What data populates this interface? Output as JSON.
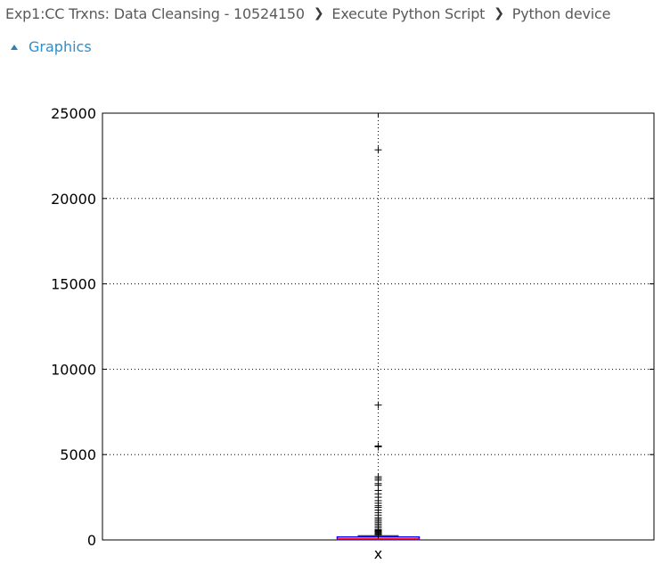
{
  "breadcrumb": {
    "items": [
      {
        "label": "Exp1:CC Trxns: Data Cleansing - 10524150"
      },
      {
        "label": "Execute Python Script"
      },
      {
        "label": "Python device"
      }
    ],
    "separator": "❯"
  },
  "section": {
    "label": "Graphics",
    "expanded": true,
    "accent_color": "#2f8ec7"
  },
  "chart_data": {
    "type": "boxplot",
    "title": "",
    "xlabel": "",
    "ylabel": "",
    "categories": [
      "x"
    ],
    "ylim": [
      0,
      25000
    ],
    "yticks": [
      0,
      5000,
      10000,
      15000,
      20000,
      25000
    ],
    "ytick_labels": [
      "0",
      "5000",
      "10000",
      "15000",
      "20000",
      "25000"
    ],
    "grid": true,
    "box": {
      "min": 0,
      "q1": 20,
      "median": 60,
      "q3": 120,
      "whisker_low": 0,
      "whisker_high": 250,
      "box_color": "#0000ff",
      "median_color": "#ff0000"
    },
    "outliers": [
      22850,
      7900,
      5500,
      5450,
      3700,
      3600,
      3500,
      3300,
      3200,
      2900,
      2700,
      2500,
      2300,
      2150,
      2000,
      1900,
      1750,
      1600,
      1450,
      1300,
      1200,
      1100,
      1000,
      900,
      800,
      700,
      600,
      550,
      500,
      450,
      400,
      350,
      300
    ]
  }
}
